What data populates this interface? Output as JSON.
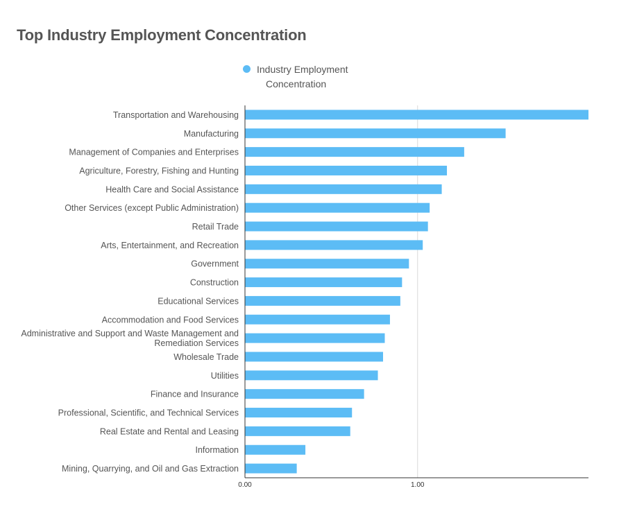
{
  "page": {
    "title": "Top Industry Employment Concentration"
  },
  "colors": {
    "bar": "#5cbcf5",
    "title": "#555555",
    "text": "#555555",
    "gridline": "#d9d9d9",
    "axis": "#333333"
  },
  "chart_data": {
    "type": "bar",
    "orientation": "horizontal",
    "title": "Top Industry Employment Concentration",
    "legend": {
      "position": "top",
      "entries": [
        "Industry Employment Concentration"
      ]
    },
    "series": [
      {
        "name": "Industry Employment Concentration",
        "values": [
          1.99,
          1.51,
          1.27,
          1.17,
          1.14,
          1.07,
          1.06,
          1.03,
          0.95,
          0.91,
          0.9,
          0.84,
          0.81,
          0.8,
          0.77,
          0.69,
          0.62,
          0.61,
          0.35,
          0.3
        ]
      }
    ],
    "categories": [
      "Transportation and Warehousing",
      "Manufacturing",
      "Management of Companies and Enterprises",
      "Agriculture, Forestry, Fishing and Hunting",
      "Health Care and Social Assistance",
      "Other Services (except Public Administration)",
      "Retail Trade",
      "Arts, Entertainment, and Recreation",
      "Government",
      "Construction",
      "Educational Services",
      "Accommodation and Food Services",
      "Administrative and Support and Waste Management and Remediation Services",
      "Wholesale Trade",
      "Utilities",
      "Finance and Insurance",
      "Professional, Scientific, and Technical Services",
      "Real Estate and Rental and Leasing",
      "Information",
      "Mining, Quarrying, and Oil and Gas Extraction"
    ],
    "category_lines": [
      [
        "Transportation and Warehousing"
      ],
      [
        "Manufacturing"
      ],
      [
        "Management of Companies and Enterprises"
      ],
      [
        "Agriculture, Forestry, Fishing and Hunting"
      ],
      [
        "Health Care and Social Assistance"
      ],
      [
        "Other Services (except Public Administration)"
      ],
      [
        "Retail Trade"
      ],
      [
        "Arts, Entertainment, and Recreation"
      ],
      [
        "Government"
      ],
      [
        "Construction"
      ],
      [
        "Educational Services"
      ],
      [
        "Accommodation and Food Services"
      ],
      [
        "Administrative and Support and Waste Management and",
        "Remediation Services"
      ],
      [
        "Wholesale Trade"
      ],
      [
        "Utilities"
      ],
      [
        "Finance and Insurance"
      ],
      [
        "Professional, Scientific, and Technical Services"
      ],
      [
        "Real Estate and Rental and Leasing"
      ],
      [
        "Information"
      ],
      [
        "Mining, Quarrying, and Oil and Gas Extraction"
      ]
    ],
    "xlim": [
      0,
      1.99
    ],
    "xticks": [
      0,
      1
    ],
    "xtick_labels": [
      "0.00",
      "1.00"
    ],
    "grid": true
  }
}
